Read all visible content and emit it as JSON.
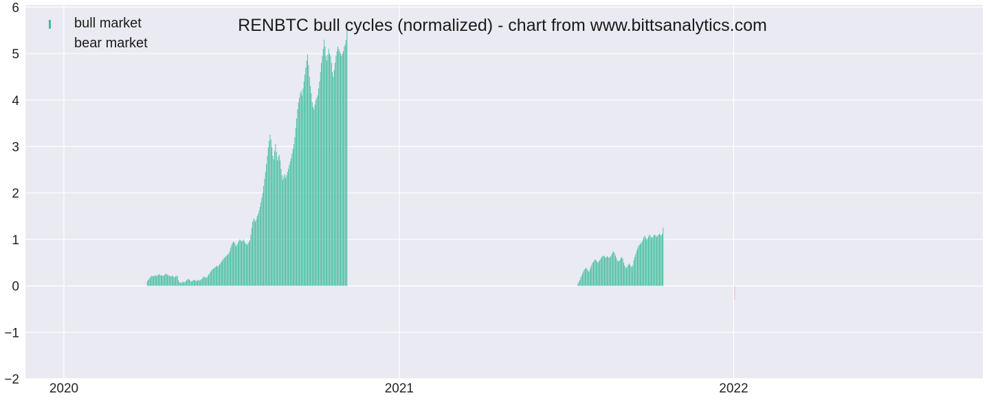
{
  "chart_data": {
    "type": "bar",
    "title": "RENBTC bull cycles (normalized)  - chart from www.bittsanalytics.com",
    "xlabel": "",
    "ylabel": "",
    "x_range": [
      "2019-11-20",
      "2022-09-30"
    ],
    "ylim": [
      -2,
      6.05
    ],
    "y_ticks": [
      -2,
      -1,
      0,
      1,
      2,
      3,
      4,
      5,
      6
    ],
    "y_tick_labels": [
      "−2",
      "−1",
      "0",
      "1",
      "2",
      "3",
      "4",
      "5",
      "6"
    ],
    "x_ticks": [
      "2020-01-01",
      "2021-01-01",
      "2022-01-01"
    ],
    "x_tick_labels": [
      "2020",
      "2021",
      "2022"
    ],
    "grid": true,
    "legend_position": "top-left",
    "colors": {
      "bull": "#3dbd9a",
      "bear": "#e05a5a",
      "background": "#eaeaf2",
      "grid": "#ffffff"
    },
    "series": [
      {
        "name": "bull market",
        "daily": true,
        "segments": [
          {
            "start": "2020-04-01",
            "values": [
              0.1,
              0.13,
              0.15,
              0.18,
              0.2,
              0.22,
              0.2,
              0.21,
              0.22,
              0.23,
              0.21,
              0.22,
              0.24,
              0.25,
              0.23,
              0.22,
              0.23,
              0.21,
              0.22,
              0.24,
              0.26,
              0.25,
              0.24,
              0.23,
              0.22,
              0.21,
              0.2,
              0.22,
              0.21,
              0.19,
              0.18,
              0.21,
              0.22,
              0.2,
              0.12,
              0.08,
              0.07,
              0.06,
              0.08,
              0.09,
              0.07,
              0.08,
              0.1,
              0.12,
              0.14,
              0.15,
              0.13,
              0.11,
              0.09,
              0.1,
              0.12,
              0.13,
              0.12,
              0.11,
              0.1,
              0.12,
              0.13,
              0.11,
              0.12,
              0.14,
              0.16,
              0.18,
              0.2,
              0.19,
              0.17,
              0.18,
              0.21,
              0.24,
              0.27,
              0.3,
              0.33,
              0.35,
              0.37,
              0.38,
              0.4,
              0.42,
              0.43,
              0.41,
              0.44,
              0.46,
              0.49,
              0.52,
              0.55,
              0.58,
              0.6,
              0.62,
              0.64,
              0.66,
              0.68,
              0.7,
              0.75,
              0.82,
              0.88,
              0.92,
              0.95,
              0.94,
              0.9,
              0.85,
              0.88,
              0.93,
              0.97,
              1.0,
              0.98,
              0.95,
              0.97,
              1.0,
              0.96,
              0.92,
              0.9,
              0.88,
              0.92,
              0.95,
              0.98,
              1.1,
              1.25,
              1.38,
              1.45,
              1.42,
              1.38,
              1.43,
              1.5,
              1.55,
              1.62,
              1.7,
              1.8,
              1.9,
              2.0,
              2.15,
              2.3,
              2.45,
              2.62,
              2.8,
              2.98,
              3.12,
              3.25,
              3.15,
              2.98,
              2.8,
              2.72,
              2.9,
              3.05,
              2.88,
              2.7,
              2.78,
              2.82,
              2.7,
              2.52,
              2.38,
              2.28,
              2.35,
              2.4,
              2.32,
              2.38,
              2.45,
              2.52,
              2.6,
              2.68,
              2.75,
              2.85,
              2.95,
              3.05,
              3.2,
              3.4,
              3.6,
              3.8,
              3.95,
              4.05,
              4.15,
              4.2,
              4.1,
              4.25,
              4.4,
              4.55,
              4.7,
              4.85,
              4.98,
              4.75,
              4.5,
              4.3,
              4.15,
              3.95,
              3.85,
              3.8,
              3.9,
              4.0,
              4.05,
              4.1,
              4.25,
              4.4,
              4.6,
              4.8,
              4.95,
              5.1,
              5.3,
              5.15,
              4.95,
              4.85,
              4.98,
              5.1,
              5.0,
              4.95,
              4.8,
              4.6,
              4.5,
              4.65,
              4.8,
              4.95,
              5.05,
              5.15,
              5.1,
              5.05,
              5.0,
              4.95,
              5.0,
              5.05,
              5.15,
              5.2,
              5.3,
              5.55
            ]
          },
          {
            "start": "2021-07-15",
            "values": [
              0.05,
              0.08,
              0.12,
              0.18,
              0.22,
              0.27,
              0.31,
              0.35,
              0.37,
              0.39,
              0.36,
              0.33,
              0.3,
              0.35,
              0.4,
              0.45,
              0.5,
              0.52,
              0.55,
              0.57,
              0.55,
              0.52,
              0.5,
              0.53,
              0.56,
              0.59,
              0.62,
              0.64,
              0.65,
              0.63,
              0.61,
              0.62,
              0.64,
              0.62,
              0.6,
              0.62,
              0.64,
              0.68,
              0.72,
              0.74,
              0.7,
              0.65,
              0.6,
              0.55,
              0.52,
              0.54,
              0.56,
              0.6,
              0.62,
              0.58,
              0.5,
              0.44,
              0.4,
              0.38,
              0.42,
              0.46,
              0.48,
              0.45,
              0.42,
              0.4,
              0.45,
              0.55,
              0.62,
              0.68,
              0.75,
              0.8,
              0.85,
              0.88,
              0.9,
              0.92,
              0.95,
              1.0,
              1.05,
              1.08,
              1.04,
              1.0,
              1.02,
              1.06,
              1.1,
              1.08,
              1.05,
              1.03,
              1.06,
              1.09,
              1.1,
              1.08,
              1.05,
              1.08,
              1.1,
              1.12,
              1.1,
              1.08,
              1.12,
              1.25
            ]
          }
        ]
      },
      {
        "name": "bear market",
        "points": [
          {
            "x": "2020-01-04",
            "y": 0.02
          },
          {
            "x": "2022-01-02",
            "y": -0.3
          }
        ]
      }
    ]
  }
}
